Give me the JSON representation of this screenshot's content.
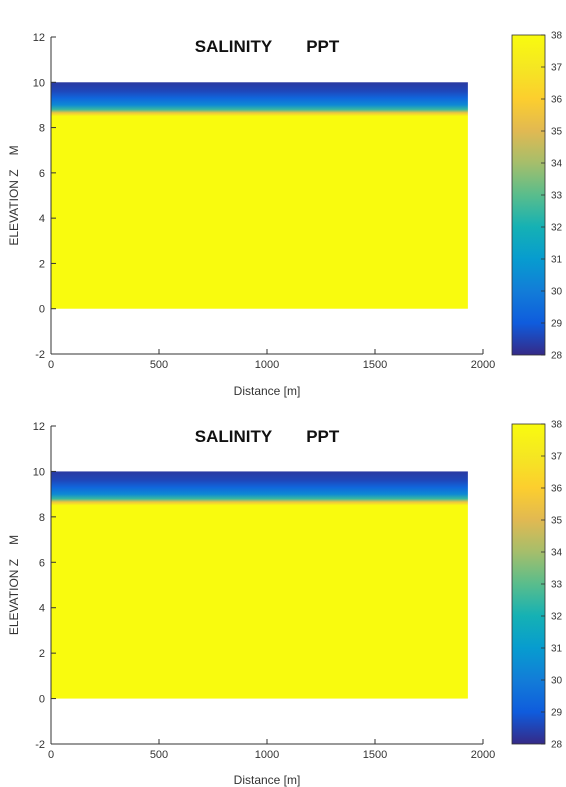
{
  "chart_data": [
    {
      "type": "heatmap",
      "title_left": "SALINITY",
      "title_right": "PPT",
      "xlabel": "Distance [m]",
      "ylabel_left": "ELEVATION Z",
      "ylabel_right": "M",
      "xlim": [
        0,
        2000
      ],
      "ylim": [
        -2,
        12
      ],
      "xticks": [
        0,
        500,
        1000,
        1500,
        2000
      ],
      "yticks": [
        -2,
        0,
        2,
        4,
        6,
        8,
        10,
        12
      ],
      "domain_x": [
        0,
        1930
      ],
      "domain_y": [
        0,
        10
      ],
      "colorbar": {
        "min": 28,
        "max": 38,
        "ticks": [
          28,
          29,
          30,
          31,
          32,
          33,
          34,
          35,
          36,
          37,
          38
        ],
        "colormap": "parula"
      },
      "profile": [
        {
          "z": 10.0,
          "salinity": 28.3
        },
        {
          "z": 9.6,
          "salinity": 28.6
        },
        {
          "z": 9.3,
          "salinity": 29.3
        },
        {
          "z": 9.0,
          "salinity": 30.4
        },
        {
          "z": 8.8,
          "salinity": 32.5
        },
        {
          "z": 8.65,
          "salinity": 35.5
        },
        {
          "z": 8.5,
          "salinity": 38.0
        },
        {
          "z": 0.0,
          "salinity": 38.0
        }
      ]
    },
    {
      "type": "heatmap",
      "title_left": "SALINITY",
      "title_right": "PPT",
      "xlabel": "Distance [m]",
      "ylabel_left": "ELEVATION Z",
      "ylabel_right": "M",
      "xlim": [
        0,
        2000
      ],
      "ylim": [
        -2,
        12
      ],
      "xticks": [
        0,
        500,
        1000,
        1500,
        2000
      ],
      "yticks": [
        -2,
        0,
        2,
        4,
        6,
        8,
        10,
        12
      ],
      "domain_x": [
        0,
        1930
      ],
      "domain_y": [
        0,
        10
      ],
      "colorbar": {
        "min": 28,
        "max": 38,
        "ticks": [
          28,
          29,
          30,
          31,
          32,
          33,
          34,
          35,
          36,
          37,
          38
        ],
        "colormap": "parula"
      },
      "profile": [
        {
          "z": 10.0,
          "salinity": 28.3
        },
        {
          "z": 9.6,
          "salinity": 28.6
        },
        {
          "z": 9.3,
          "salinity": 29.3
        },
        {
          "z": 9.0,
          "salinity": 30.4
        },
        {
          "z": 8.8,
          "salinity": 32.5
        },
        {
          "z": 8.65,
          "salinity": 35.5
        },
        {
          "z": 8.5,
          "salinity": 38.0
        },
        {
          "z": 0.0,
          "salinity": 38.0
        }
      ]
    }
  ]
}
